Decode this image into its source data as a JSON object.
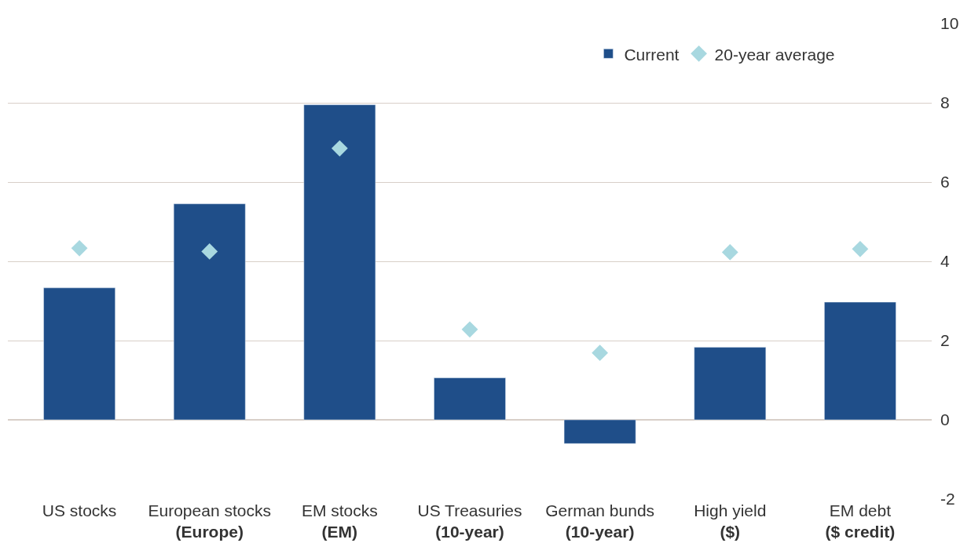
{
  "chart_data": {
    "type": "bar",
    "categories": [
      "US stocks",
      "European stocks\n(Europe)",
      "EM stocks\n(EM)",
      "US Treasuries\n(10-year)",
      "German bunds\n(10-year)",
      "High yield\n($)",
      "EM debt\n($ credit)"
    ],
    "series": [
      {
        "name": "Current",
        "color": "#1f4e89",
        "values": [
          3.33,
          5.45,
          7.95,
          1.06,
          -0.6,
          1.83,
          2.97
        ]
      },
      {
        "name": "20-year average",
        "type": "scatter",
        "marker": "diamond",
        "color": "#a8d8e0",
        "values": [
          4.33,
          4.25,
          6.85,
          2.28,
          1.69,
          4.23,
          4.31
        ]
      }
    ],
    "ylim": [
      -2,
      10
    ],
    "yticks": [
      -2,
      0,
      2,
      4,
      6,
      8,
      10
    ],
    "grid": "y",
    "legend": "top right"
  }
}
